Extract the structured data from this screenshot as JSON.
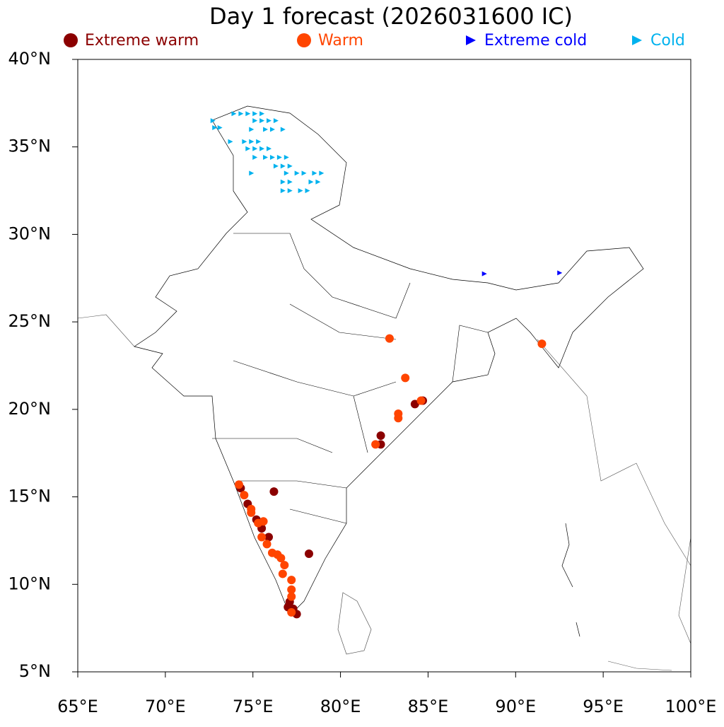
{
  "chart_data": {
    "type": "scatter",
    "title": "Day 1 forecast (2026031600 IC)",
    "xlim": [
      65,
      100
    ],
    "ylim": [
      5,
      40
    ],
    "xticks": [
      {
        "value": 65,
        "label": "65°E"
      },
      {
        "value": 70,
        "label": "70°E"
      },
      {
        "value": 75,
        "label": "75°E"
      },
      {
        "value": 80,
        "label": "80°E"
      },
      {
        "value": 85,
        "label": "85°E"
      },
      {
        "value": 90,
        "label": "90°E"
      },
      {
        "value": 95,
        "label": "95°E"
      },
      {
        "value": 100,
        "label": "100°E"
      }
    ],
    "yticks": [
      {
        "value": 5,
        "label": "5°N"
      },
      {
        "value": 10,
        "label": "10°N"
      },
      {
        "value": 15,
        "label": "15°N"
      },
      {
        "value": 20,
        "label": "20°N"
      },
      {
        "value": 25,
        "label": "25°N"
      },
      {
        "value": 30,
        "label": "30°N"
      },
      {
        "value": 35,
        "label": "35°N"
      },
      {
        "value": 40,
        "label": "40°N"
      }
    ],
    "series": [
      {
        "name": "Extreme warm",
        "color": "#8b0000",
        "marker": "circle",
        "x": [
          76.2,
          78.2,
          84.25,
          84.7,
          82.3,
          82.3,
          74.7,
          75.2,
          75.5,
          75.9,
          77.1,
          77.3,
          77.5,
          77.0,
          74.3
        ],
        "y": [
          15.3,
          11.75,
          20.3,
          20.5,
          18.5,
          18.0,
          14.6,
          13.7,
          13.2,
          12.7,
          9.0,
          8.6,
          8.3,
          8.7,
          15.5
        ]
      },
      {
        "name": "Warm",
        "color": "#ff4500",
        "marker": "circle",
        "x": [
          82.8,
          83.7,
          91.5,
          83.3,
          83.3,
          84.6,
          82.0,
          74.2,
          74.5,
          74.9,
          75.3,
          75.6,
          75.5,
          75.8,
          76.1,
          76.4,
          76.6,
          76.8,
          76.7,
          77.2,
          77.2,
          77.2,
          77.2,
          74.9
        ],
        "y": [
          24.05,
          21.8,
          23.75,
          19.75,
          19.5,
          20.5,
          18.0,
          15.7,
          15.1,
          14.3,
          13.5,
          13.6,
          12.7,
          12.3,
          11.8,
          11.7,
          11.5,
          11.1,
          10.6,
          10.25,
          9.7,
          9.3,
          8.4,
          14.1
        ]
      },
      {
        "name": "Extreme cold",
        "color": "#0000ff",
        "marker": "triangle",
        "x": [
          88.2,
          92.5
        ],
        "y": [
          27.75,
          27.8
        ]
      },
      {
        "name": "Cold",
        "color": "#00b2ee",
        "marker": "triangle",
        "x": [
          72.7,
          72.8,
          73.1,
          73.9,
          74.3,
          74.7,
          75.1,
          75.5,
          75.1,
          75.5,
          75.9,
          76.3,
          74.9,
          75.7,
          76.1,
          76.7,
          73.7,
          74.5,
          74.9,
          75.3,
          74.7,
          75.1,
          75.5,
          75.9,
          75.1,
          75.7,
          76.1,
          76.5,
          76.9,
          76.3,
          76.7,
          77.1,
          74.9,
          76.9,
          77.5,
          77.9,
          78.5,
          78.9,
          76.7,
          77.1,
          78.3,
          78.7,
          76.7,
          77.1,
          77.7,
          78.1
        ],
        "y": [
          36.5,
          36.1,
          36.1,
          36.9,
          36.9,
          36.9,
          36.9,
          36.9,
          36.5,
          36.5,
          36.5,
          36.5,
          36.0,
          36.0,
          36.0,
          36.0,
          35.3,
          35.3,
          35.3,
          35.3,
          34.9,
          34.9,
          34.9,
          34.9,
          34.4,
          34.4,
          34.4,
          34.4,
          34.4,
          33.9,
          33.9,
          33.9,
          33.5,
          33.5,
          33.5,
          33.5,
          33.5,
          33.5,
          33.0,
          33.0,
          33.0,
          33.0,
          32.5,
          32.5,
          32.5,
          32.5
        ]
      }
    ]
  }
}
